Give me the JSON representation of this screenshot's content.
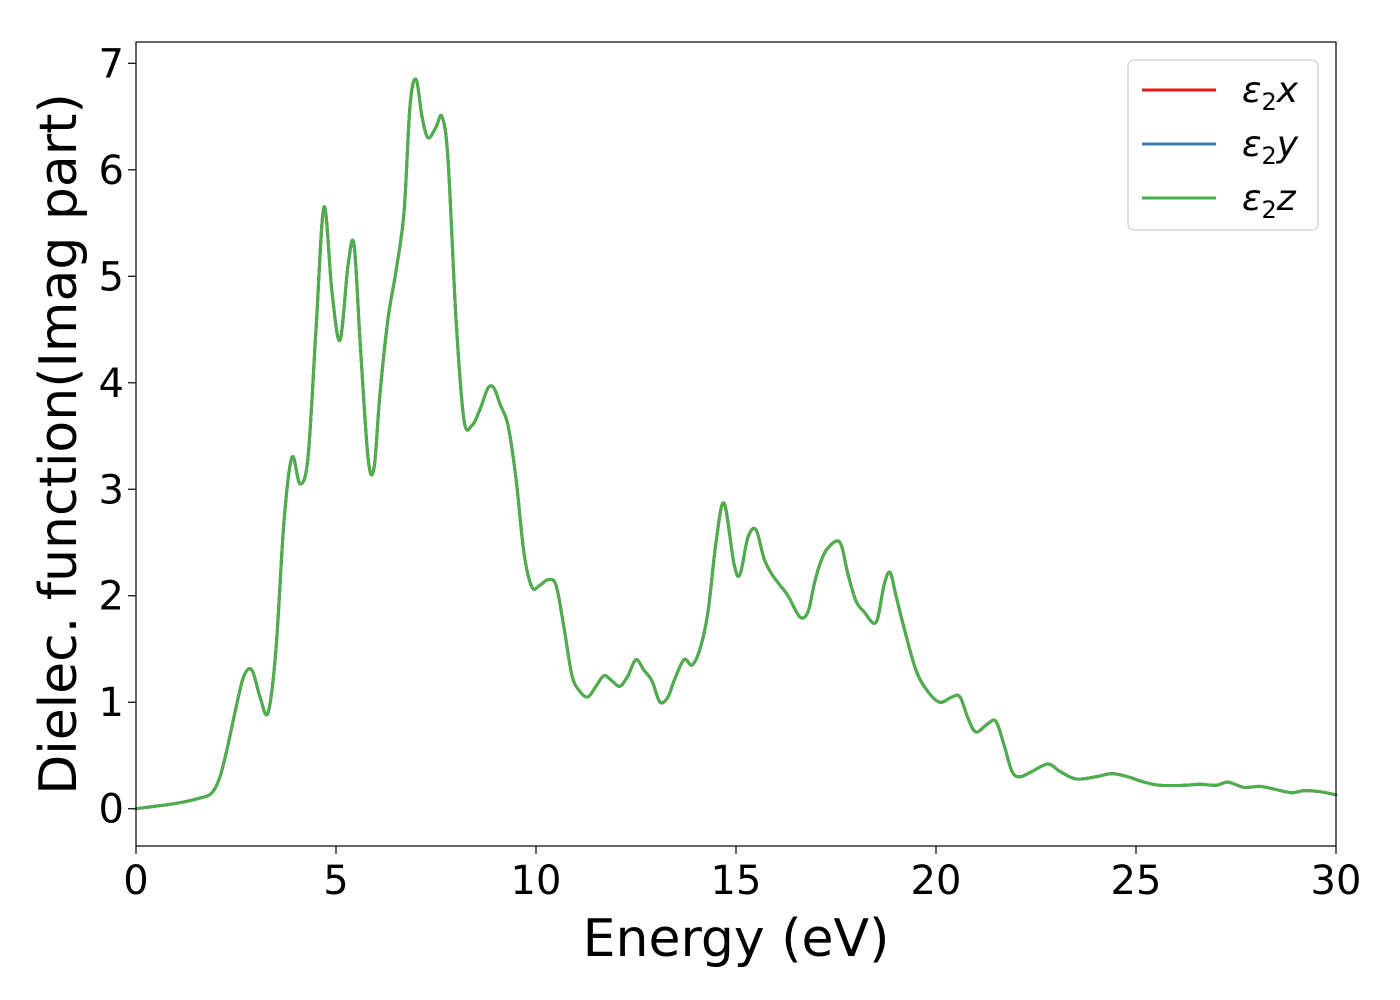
{
  "chart_data": {
    "type": "line",
    "xlabel": "Energy (eV)",
    "ylabel": "Dielec. function(Imag part)",
    "xlim": [
      0,
      30
    ],
    "ylim": [
      -0.35,
      7.2
    ],
    "xticks": [
      0,
      5,
      10,
      15,
      20,
      25,
      30
    ],
    "yticks": [
      0,
      1,
      2,
      3,
      4,
      5,
      6,
      7
    ],
    "grid": false,
    "legend_position": "top-right",
    "series": [
      {
        "name_base": "ε",
        "name_sub": "2",
        "name_tail": "x",
        "color": "#e41a1c"
      },
      {
        "name_base": "ε",
        "name_sub": "2",
        "name_tail": "y",
        "color": "#377eb8"
      },
      {
        "name_base": "ε",
        "name_sub": "2",
        "name_tail": "z",
        "color": "#4daf4a"
      }
    ],
    "x": [
      0,
      1.0,
      1.6,
      1.9,
      2.1,
      2.3,
      2.5,
      2.7,
      2.9,
      3.1,
      3.3,
      3.5,
      3.7,
      3.9,
      4.1,
      4.3,
      4.5,
      4.7,
      4.9,
      5.1,
      5.3,
      5.45,
      5.6,
      5.8,
      5.95,
      6.1,
      6.3,
      6.5,
      6.7,
      6.85,
      7.0,
      7.15,
      7.3,
      7.5,
      7.65,
      7.8,
      8.0,
      8.2,
      8.4,
      8.6,
      8.8,
      8.95,
      9.1,
      9.3,
      9.5,
      9.7,
      9.9,
      10.1,
      10.3,
      10.5,
      10.7,
      10.9,
      11.1,
      11.3,
      11.5,
      11.7,
      11.9,
      12.1,
      12.3,
      12.5,
      12.7,
      12.9,
      13.1,
      13.3,
      13.45,
      13.7,
      13.9,
      14.1,
      14.3,
      14.5,
      14.7,
      14.95,
      15.1,
      15.3,
      15.5,
      15.7,
      15.9,
      16.1,
      16.3,
      16.6,
      16.8,
      16.95,
      17.1,
      17.3,
      17.6,
      17.8,
      18.0,
      18.2,
      18.5,
      18.7,
      18.85,
      19.0,
      19.2,
      19.5,
      19.8,
      20.1,
      20.4,
      20.6,
      20.8,
      21.0,
      21.3,
      21.5,
      21.7,
      21.9,
      22.1,
      22.4,
      22.8,
      23.1,
      23.5,
      24.0,
      24.4,
      24.8,
      25.2,
      25.6,
      26.2,
      26.6,
      27.0,
      27.3,
      27.7,
      28.1,
      28.5,
      28.9,
      29.2,
      29.6,
      30.0
    ],
    "y": [
      0.0,
      0.05,
      0.1,
      0.15,
      0.3,
      0.6,
      0.95,
      1.25,
      1.3,
      1.05,
      0.9,
      1.5,
      2.7,
      3.3,
      3.05,
      3.3,
      4.5,
      5.65,
      4.85,
      4.4,
      5.1,
      5.3,
      4.4,
      3.3,
      3.2,
      3.9,
      4.6,
      5.05,
      5.6,
      6.6,
      6.85,
      6.5,
      6.3,
      6.4,
      6.5,
      6.1,
      4.6,
      3.65,
      3.6,
      3.75,
      3.95,
      3.95,
      3.8,
      3.6,
      3.1,
      2.4,
      2.08,
      2.1,
      2.15,
      2.1,
      1.7,
      1.25,
      1.1,
      1.05,
      1.15,
      1.25,
      1.2,
      1.15,
      1.25,
      1.4,
      1.3,
      1.2,
      1.0,
      1.05,
      1.2,
      1.4,
      1.35,
      1.5,
      1.85,
      2.5,
      2.87,
      2.3,
      2.2,
      2.55,
      2.62,
      2.35,
      2.2,
      2.1,
      2.0,
      1.8,
      1.85,
      2.1,
      2.3,
      2.45,
      2.5,
      2.2,
      1.95,
      1.85,
      1.75,
      2.1,
      2.22,
      2.0,
      1.7,
      1.3,
      1.1,
      1.0,
      1.05,
      1.05,
      0.85,
      0.72,
      0.8,
      0.82,
      0.6,
      0.35,
      0.3,
      0.35,
      0.42,
      0.35,
      0.28,
      0.3,
      0.33,
      0.3,
      0.25,
      0.22,
      0.22,
      0.23,
      0.22,
      0.25,
      0.2,
      0.21,
      0.18,
      0.15,
      0.17,
      0.16,
      0.13
    ]
  }
}
